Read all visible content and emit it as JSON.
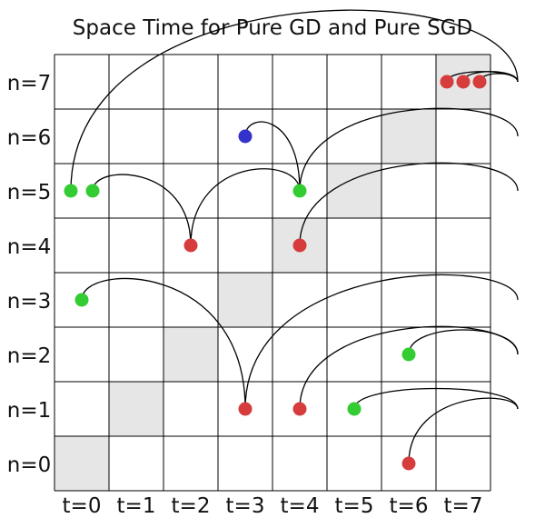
{
  "title": "Space Time for Pure GD and Pure SGD",
  "grid": {
    "time_labels": [
      "t=0",
      "t=1",
      "t=2",
      "t=3",
      "t=4",
      "t=5",
      "t=6",
      "t=7"
    ],
    "node_labels": [
      "n=0",
      "n=1",
      "n=2",
      "n=3",
      "n=4",
      "n=5",
      "n=6",
      "n=7"
    ],
    "shaded_cells": [
      {
        "t": 0,
        "n": 0
      },
      {
        "t": 1,
        "n": 1
      },
      {
        "t": 2,
        "n": 2
      },
      {
        "t": 3,
        "n": 3
      },
      {
        "t": 4,
        "n": 4
      },
      {
        "t": 5,
        "n": 5
      },
      {
        "t": 6,
        "n": 6
      },
      {
        "t": 7,
        "n": 7
      }
    ]
  },
  "colors": {
    "green": "#33cc33",
    "red": "#d63c3c",
    "blue": "#3333cc",
    "shade": "#e6e6e6",
    "line": "#000000"
  },
  "dots": [
    {
      "t": 0.3,
      "n": 5,
      "color": "green"
    },
    {
      "t": 0.7,
      "n": 5,
      "color": "green"
    },
    {
      "t": 0.5,
      "n": 3,
      "color": "green"
    },
    {
      "t": 4.5,
      "n": 5,
      "color": "green"
    },
    {
      "t": 6.5,
      "n": 2,
      "color": "green"
    },
    {
      "t": 5.5,
      "n": 1,
      "color": "green"
    },
    {
      "t": 2.5,
      "n": 4,
      "color": "red"
    },
    {
      "t": 4.5,
      "n": 4,
      "color": "red"
    },
    {
      "t": 3.5,
      "n": 1,
      "color": "red"
    },
    {
      "t": 4.5,
      "n": 1,
      "color": "red"
    },
    {
      "t": 6.5,
      "n": 0,
      "color": "red"
    },
    {
      "t": 7.2,
      "n": 7,
      "color": "red"
    },
    {
      "t": 7.5,
      "n": 7,
      "color": "red"
    },
    {
      "t": 7.8,
      "n": 7,
      "color": "red"
    },
    {
      "t": 3.5,
      "n": 6,
      "color": "blue"
    }
  ],
  "arcs": [
    {
      "from": [
        0.3,
        5
      ],
      "to": [
        8.5,
        7
      ],
      "rise": 2.0
    },
    {
      "from": [
        0.7,
        5
      ],
      "to": [
        2.5,
        4
      ],
      "rise": 0.5
    },
    {
      "from": [
        2.5,
        4
      ],
      "to": [
        4.5,
        5
      ],
      "rise": 0.65
    },
    {
      "from": [
        3.5,
        6
      ],
      "to": [
        4.5,
        5
      ],
      "rise": 0.45
    },
    {
      "from": [
        4.5,
        5
      ],
      "to": [
        8.5,
        6
      ],
      "rise": 0.8
    },
    {
      "from": [
        4.5,
        4
      ],
      "to": [
        8.5,
        5
      ],
      "rise": 0.8
    },
    {
      "from": [
        0.5,
        3
      ],
      "to": [
        3.5,
        1
      ],
      "rise": 0.7
    },
    {
      "from": [
        3.5,
        1
      ],
      "to": [
        8.5,
        3
      ],
      "rise": 0.8
    },
    {
      "from": [
        4.5,
        1
      ],
      "to": [
        8.5,
        2
      ],
      "rise": 0.8
    },
    {
      "from": [
        6.5,
        2
      ],
      "to": [
        8.5,
        2
      ],
      "rise": 0.6
    },
    {
      "from": [
        5.5,
        1
      ],
      "to": [
        8.5,
        1
      ],
      "rise": 0.5
    },
    {
      "from": [
        6.5,
        0
      ],
      "to": [
        8.5,
        1
      ],
      "rise": 0.35
    },
    {
      "from": [
        7.2,
        7
      ],
      "to": [
        8.5,
        7
      ],
      "rise": 0.25
    },
    {
      "from": [
        7.5,
        7
      ],
      "to": [
        8.5,
        7
      ],
      "rise": 0.25
    },
    {
      "from": [
        7.8,
        7
      ],
      "to": [
        8.5,
        7
      ],
      "rise": 0.2
    }
  ]
}
